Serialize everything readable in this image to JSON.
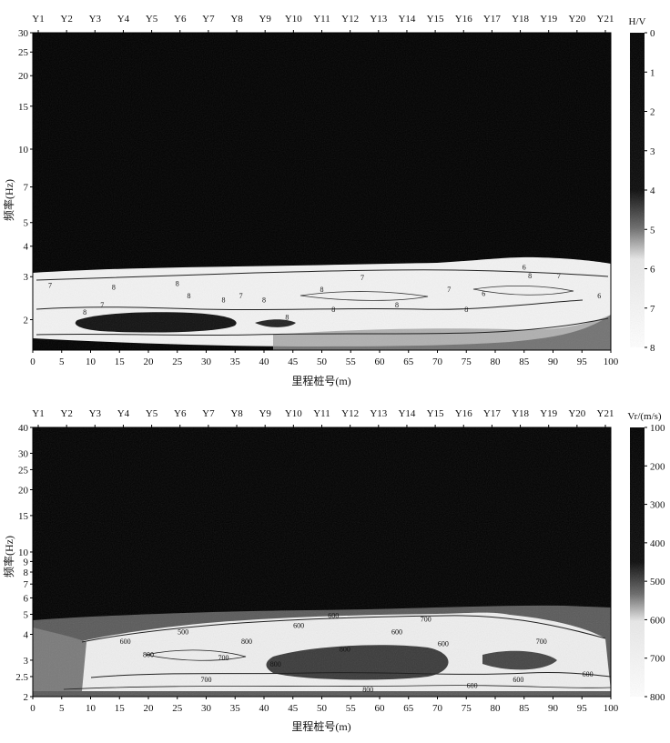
{
  "chart_data": [
    {
      "type": "heatmap",
      "title": "",
      "stations": [
        "Y1",
        "Y2",
        "Y3",
        "Y4",
        "Y5",
        "Y6",
        "Y7",
        "Y8",
        "Y9",
        "Y10",
        "Y11",
        "Y12",
        "Y13",
        "Y14",
        "Y15",
        "Y16",
        "Y17",
        "Y18",
        "Y19",
        "Y20",
        "Y21"
      ],
      "xlabel": "里程桩号(m)",
      "ylabel": "频率(Hz)",
      "x_ticks": [
        0,
        5,
        10,
        15,
        20,
        25,
        30,
        35,
        40,
        45,
        50,
        55,
        60,
        65,
        70,
        75,
        80,
        85,
        90,
        95,
        100
      ],
      "xlim": [
        0,
        100
      ],
      "y_ticks": [
        2,
        3,
        4,
        5,
        7,
        10,
        15,
        20,
        25,
        30
      ],
      "ylim": [
        1.5,
        30
      ],
      "y_scale": "log",
      "colorbar": {
        "label": "H/V",
        "ticks": [
          0,
          1,
          2,
          3,
          4,
          5,
          6,
          7,
          8
        ],
        "range": [
          0,
          8
        ]
      },
      "contour_levels": [
        5,
        6,
        7,
        8
      ],
      "contour_labels": [
        {
          "x": 3,
          "y": 2.7,
          "text": "7"
        },
        {
          "x": 9,
          "y": 2.1,
          "text": "8"
        },
        {
          "x": 12,
          "y": 2.25,
          "text": "7"
        },
        {
          "x": 14,
          "y": 2.65,
          "text": "8"
        },
        {
          "x": 25,
          "y": 2.75,
          "text": "8"
        },
        {
          "x": 27,
          "y": 2.45,
          "text": "8"
        },
        {
          "x": 33,
          "y": 2.35,
          "text": "8"
        },
        {
          "x": 36,
          "y": 2.45,
          "text": "7"
        },
        {
          "x": 40,
          "y": 2.35,
          "text": "8"
        },
        {
          "x": 44,
          "y": 2.0,
          "text": "8"
        },
        {
          "x": 50,
          "y": 2.6,
          "text": "8"
        },
        {
          "x": 52,
          "y": 2.15,
          "text": "8"
        },
        {
          "x": 57,
          "y": 2.9,
          "text": "7"
        },
        {
          "x": 63,
          "y": 2.25,
          "text": "8"
        },
        {
          "x": 72,
          "y": 2.6,
          "text": "7"
        },
        {
          "x": 75,
          "y": 2.15,
          "text": "8"
        },
        {
          "x": 78,
          "y": 2.5,
          "text": "6"
        },
        {
          "x": 85,
          "y": 3.2,
          "text": "6"
        },
        {
          "x": 86,
          "y": 2.95,
          "text": "8"
        },
        {
          "x": 91,
          "y": 2.95,
          "text": "7"
        },
        {
          "x": 98,
          "y": 2.45,
          "text": "6"
        }
      ]
    },
    {
      "type": "heatmap",
      "title": "",
      "stations": [
        "Y1",
        "Y2",
        "Y3",
        "Y4",
        "Y5",
        "Y6",
        "Y7",
        "Y8",
        "Y9",
        "Y10",
        "Y11",
        "Y12",
        "Y13",
        "Y14",
        "Y15",
        "Y16",
        "Y17",
        "Y18",
        "Y19",
        "Y20",
        "Y21"
      ],
      "xlabel": "里程桩号(m)",
      "ylabel": "频率(Hz)",
      "x_ticks": [
        0,
        5,
        10,
        15,
        20,
        25,
        30,
        35,
        40,
        45,
        50,
        55,
        60,
        65,
        70,
        75,
        80,
        85,
        90,
        95,
        100
      ],
      "xlim": [
        0,
        100
      ],
      "y_ticks": [
        2,
        2.5,
        3,
        4,
        5,
        6,
        7,
        8,
        9,
        10,
        15,
        20,
        25,
        30,
        40
      ],
      "ylim": [
        2,
        40
      ],
      "y_scale": "log",
      "colorbar": {
        "label": "Vr/(m/s)",
        "ticks": [
          100,
          200,
          300,
          400,
          500,
          600,
          700,
          800
        ],
        "range": [
          100,
          800
        ]
      },
      "contour_levels": [
        500,
        600,
        700,
        800
      ],
      "contour_labels": [
        {
          "x": 16,
          "y": 3.6,
          "text": "600"
        },
        {
          "x": 20,
          "y": 3.1,
          "text": "800"
        },
        {
          "x": 26,
          "y": 4.0,
          "text": "500"
        },
        {
          "x": 30,
          "y": 2.35,
          "text": "700"
        },
        {
          "x": 33,
          "y": 3.0,
          "text": "700"
        },
        {
          "x": 37,
          "y": 3.6,
          "text": "800"
        },
        {
          "x": 42,
          "y": 2.8,
          "text": "800"
        },
        {
          "x": 46,
          "y": 4.3,
          "text": "600"
        },
        {
          "x": 52,
          "y": 4.8,
          "text": "600"
        },
        {
          "x": 54,
          "y": 3.3,
          "text": "800"
        },
        {
          "x": 58,
          "y": 2.1,
          "text": "800"
        },
        {
          "x": 63,
          "y": 4.0,
          "text": "600"
        },
        {
          "x": 68,
          "y": 4.6,
          "text": "700"
        },
        {
          "x": 71,
          "y": 3.5,
          "text": "600"
        },
        {
          "x": 76,
          "y": 2.2,
          "text": "600"
        },
        {
          "x": 84,
          "y": 2.35,
          "text": "600"
        },
        {
          "x": 88,
          "y": 3.6,
          "text": "700"
        },
        {
          "x": 96,
          "y": 2.5,
          "text": "600"
        }
      ]
    }
  ]
}
